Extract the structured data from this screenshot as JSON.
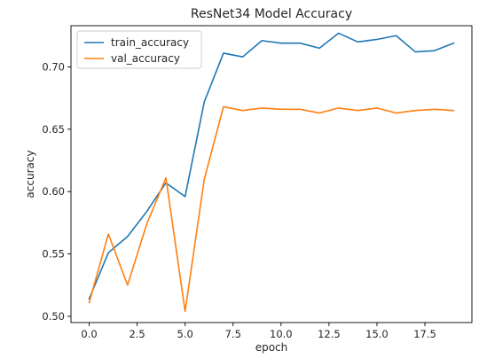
{
  "chart_data": {
    "type": "line",
    "title": "ResNet34 Model Accuracy",
    "xlabel": "epoch",
    "ylabel": "accuracy",
    "xlim": [
      -0.95,
      19.95
    ],
    "ylim": [
      0.495,
      0.733
    ],
    "xticks": [
      0.0,
      2.5,
      5.0,
      7.5,
      10.0,
      12.5,
      15.0,
      17.5
    ],
    "xtick_labels": [
      "0.0",
      "2.5",
      "5.0",
      "7.5",
      "10.0",
      "12.5",
      "15.0",
      "17.5"
    ],
    "yticks": [
      0.5,
      0.55,
      0.6,
      0.65,
      0.7
    ],
    "ytick_labels": [
      "0.50",
      "0.55",
      "0.60",
      "0.65",
      "0.70"
    ],
    "grid": false,
    "legend_position": "top-left",
    "x": [
      0,
      1,
      2,
      3,
      4,
      5,
      6,
      7,
      8,
      9,
      10,
      11,
      12,
      13,
      14,
      15,
      16,
      17,
      18,
      19
    ],
    "series": [
      {
        "name": "train_accuracy",
        "color": "#1f77b4",
        "values": [
          0.514,
          0.551,
          0.564,
          0.584,
          0.607,
          0.596,
          0.672,
          0.711,
          0.708,
          0.721,
          0.719,
          0.719,
          0.715,
          0.727,
          0.72,
          0.722,
          0.725,
          0.712,
          0.713,
          0.719
        ]
      },
      {
        "name": "val_accuracy",
        "color": "#ff7f0e",
        "values": [
          0.511,
          0.566,
          0.525,
          0.574,
          0.611,
          0.504,
          0.61,
          0.668,
          0.665,
          0.667,
          0.666,
          0.666,
          0.663,
          0.667,
          0.665,
          0.667,
          0.663,
          0.665,
          0.666,
          0.665
        ]
      }
    ]
  }
}
